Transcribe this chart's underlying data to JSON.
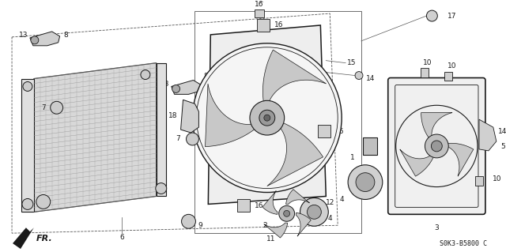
{
  "bg_color": "#ffffff",
  "fig_width": 6.4,
  "fig_height": 3.19,
  "diagram_code": "S0K3-B5800 C",
  "line_color": "#1a1a1a",
  "gray": "#888888",
  "light_gray": "#cccccc",
  "mid_gray": "#aaaaaa"
}
